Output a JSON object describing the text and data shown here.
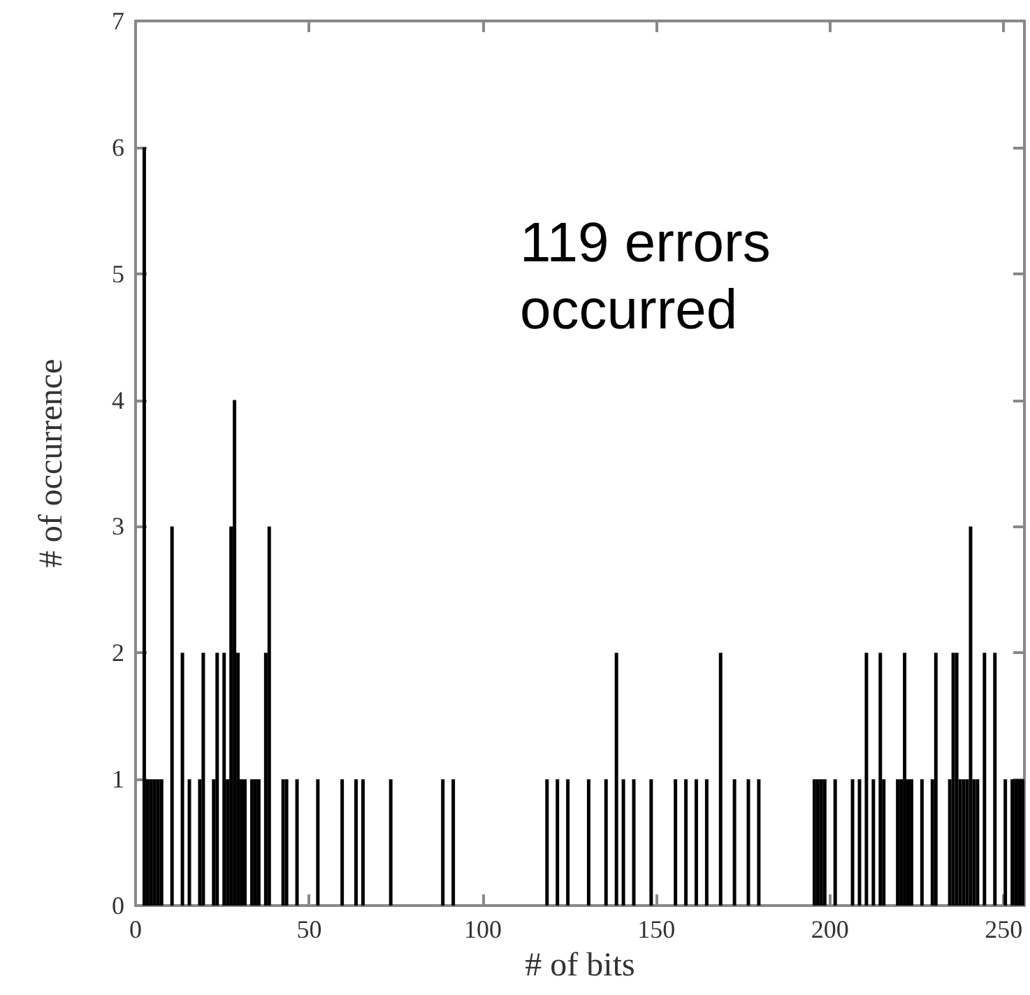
{
  "chart_data": {
    "type": "histogram",
    "xlabel": "# of bits",
    "ylabel": "# of occurrence",
    "annotations": [
      "119 errors\noccurred"
    ],
    "color": "#000000",
    "bins": [
      0,
      1,
      2,
      3,
      4,
      5,
      6,
      7,
      8,
      9,
      10,
      11,
      12,
      13,
      14,
      15,
      16,
      17,
      18,
      19,
      20,
      21,
      22,
      23,
      24,
      25,
      26,
      27,
      28,
      29,
      30,
      31,
      32,
      33,
      34,
      35,
      36,
      37,
      38,
      39,
      40,
      41,
      42,
      43,
      44,
      45,
      46,
      47,
      48,
      49,
      50,
      51,
      52,
      53,
      54,
      55,
      56,
      57,
      58,
      59,
      60,
      61,
      62,
      63,
      64,
      65,
      66,
      67,
      68,
      69,
      70,
      71,
      72,
      73,
      74,
      75,
      76,
      77,
      78,
      79,
      80,
      81,
      82,
      83,
      84,
      85,
      86,
      87,
      88,
      89,
      90,
      91,
      92,
      93,
      94,
      95,
      96,
      97,
      98,
      99,
      100,
      101,
      102,
      103,
      104,
      105,
      106,
      107,
      108,
      109,
      110,
      111,
      112,
      113,
      114,
      115,
      116,
      117,
      118,
      119,
      120,
      121,
      122,
      123,
      124,
      125,
      126,
      127,
      128,
      129,
      130,
      131,
      132,
      133,
      134,
      135,
      136,
      137,
      138,
      139,
      140,
      141,
      142,
      143,
      144,
      145,
      146,
      147,
      148,
      149,
      150,
      151,
      152,
      153,
      154,
      155,
      156,
      157,
      158,
      159,
      160,
      161,
      162,
      163,
      164,
      165,
      166,
      167,
      168,
      169,
      170,
      171,
      172,
      173,
      174,
      175,
      176,
      177,
      178,
      179,
      180,
      181,
      182,
      183,
      184,
      185,
      186,
      187,
      188,
      189,
      190,
      191,
      192,
      193,
      194,
      195,
      196,
      197,
      198,
      199,
      200,
      201,
      202,
      203,
      204,
      205,
      206,
      207,
      208,
      209,
      210,
      211,
      212,
      213,
      214,
      215,
      216,
      217,
      218,
      219,
      220,
      221,
      222,
      223,
      224,
      225,
      226,
      227,
      228,
      229,
      230,
      231,
      232,
      233,
      234,
      235,
      236,
      237,
      238,
      239,
      240,
      241,
      242,
      243,
      244,
      245,
      246,
      247,
      248,
      249,
      250,
      251,
      252,
      253,
      254,
      255,
      256
    ],
    "values": [
      0,
      0,
      6,
      1,
      1,
      1,
      1,
      1,
      0,
      0,
      3,
      0,
      0,
      2,
      0,
      1,
      0,
      0,
      1,
      2,
      0,
      0,
      1,
      2,
      0,
      2,
      1,
      3,
      4,
      2,
      1,
      1,
      0,
      1,
      1,
      1,
      0,
      2,
      3,
      0,
      0,
      0,
      1,
      1,
      0,
      0,
      1,
      0,
      0,
      0,
      0,
      0,
      1,
      0,
      0,
      0,
      0,
      0,
      0,
      1,
      0,
      0,
      0,
      1,
      0,
      1,
      0,
      0,
      0,
      0,
      0,
      0,
      0,
      1,
      0,
      0,
      0,
      0,
      0,
      0,
      0,
      0,
      0,
      0,
      0,
      0,
      0,
      0,
      1,
      0,
      0,
      1,
      0,
      0,
      0,
      0,
      0,
      0,
      0,
      0,
      0,
      0,
      0,
      0,
      0,
      0,
      0,
      0,
      0,
      0,
      0,
      0,
      0,
      0,
      0,
      0,
      0,
      0,
      1,
      0,
      0,
      1,
      0,
      0,
      1,
      0,
      0,
      0,
      0,
      0,
      1,
      0,
      0,
      0,
      0,
      1,
      0,
      0,
      2,
      0,
      1,
      0,
      0,
      1,
      0,
      0,
      0,
      0,
      1,
      0,
      0,
      0,
      0,
      0,
      0,
      1,
      0,
      0,
      1,
      0,
      0,
      1,
      0,
      0,
      1,
      0,
      0,
      0,
      2,
      0,
      0,
      0,
      1,
      0,
      0,
      0,
      1,
      0,
      0,
      1,
      0,
      0,
      0,
      0,
      0,
      0,
      0,
      0,
      0,
      0,
      0,
      0,
      0,
      0,
      0,
      1,
      1,
      1,
      1,
      0,
      0,
      1,
      0,
      0,
      0,
      0,
      1,
      0,
      1,
      0,
      2,
      0,
      1,
      0,
      2,
      1,
      0,
      0,
      0,
      1,
      1,
      2,
      1,
      1,
      0,
      0,
      1,
      0,
      0,
      1,
      2,
      0,
      0,
      0,
      1,
      2,
      2,
      1,
      1,
      1,
      3,
      1,
      1,
      0,
      2,
      0,
      0,
      2,
      0,
      0,
      1,
      0,
      1,
      1,
      1,
      1
    ],
    "xlim": [
      0,
      256
    ],
    "xticks": [
      0,
      50,
      100,
      150,
      200,
      250
    ],
    "ylim": [
      0,
      7
    ],
    "yticks": [
      0,
      1,
      2,
      3,
      4,
      5,
      6,
      7
    ],
    "grid": false
  }
}
